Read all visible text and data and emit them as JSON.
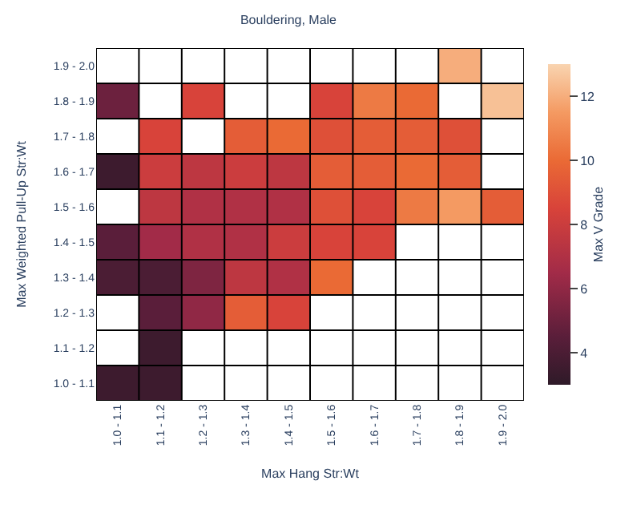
{
  "chart_data": {
    "type": "heatmap",
    "title": "Bouldering, Male",
    "xlabel": "Max Hang Str:Wt",
    "ylabel": "Max Weighted Pull-Up Str:Wt",
    "clabel": "Max V Grade",
    "categories": [
      "1.0 - 1.1",
      "1.1 - 1.2",
      "1.2 - 1.3",
      "1.3 - 1.4",
      "1.4 - 1.5",
      "1.5 - 1.6",
      "1.6 - 1.7",
      "1.7 - 1.8",
      "1.8 - 1.9",
      "1.9 - 2.0"
    ],
    "y_categories": [
      "1.9 - 2.0",
      "1.8 - 1.9",
      "1.7 - 1.8",
      "1.6 - 1.7",
      "1.5 - 1.6",
      "1.4 - 1.5",
      "1.3 - 1.4",
      "1.2 - 1.3",
      "1.1 - 1.2",
      "1.0 - 1.1"
    ],
    "cells": [
      [
        null,
        null,
        null,
        null,
        null,
        null,
        null,
        null,
        12,
        null
      ],
      [
        5,
        null,
        8.5,
        null,
        null,
        8.5,
        10.5,
        10,
        null,
        12.5
      ],
      [
        null,
        8.5,
        null,
        9.5,
        10,
        9,
        9.5,
        9.5,
        9,
        null
      ],
      [
        3.5,
        8,
        7.5,
        8,
        7.5,
        9.5,
        9.5,
        10,
        9.5,
        null
      ],
      [
        null,
        7.5,
        7,
        7,
        7,
        9,
        8.5,
        10.5,
        11.5,
        9.5
      ],
      [
        4.5,
        6.5,
        7,
        7,
        8,
        8.5,
        8.5,
        null,
        null,
        null
      ],
      [
        4,
        4,
        5.5,
        7.5,
        7,
        10,
        null,
        null,
        null,
        null
      ],
      [
        null,
        4.5,
        6,
        9.5,
        8.5,
        null,
        null,
        null,
        null,
        null
      ],
      [
        null,
        3.5,
        null,
        null,
        null,
        null,
        null,
        null,
        null,
        null
      ],
      [
        3.5,
        3.5,
        null,
        null,
        null,
        null,
        null,
        null,
        null,
        null
      ]
    ],
    "clim": [
      3,
      13
    ],
    "cticks": [
      4,
      6,
      8,
      10,
      12
    ]
  }
}
